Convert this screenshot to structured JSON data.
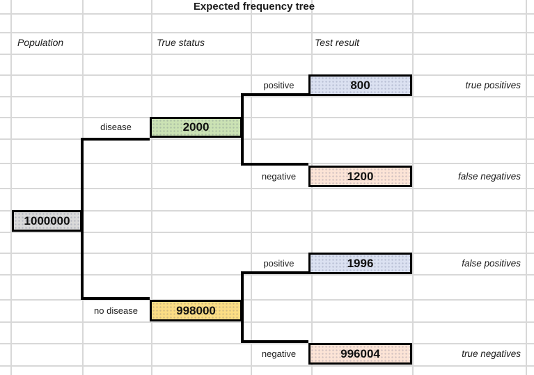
{
  "title": "Expected frequency tree",
  "column_headers": {
    "population": "Population",
    "true_status": "True status",
    "test_result": "Test result"
  },
  "tree": {
    "root": {
      "value": "1000000"
    },
    "level1": [
      {
        "label": "disease",
        "value": "2000"
      },
      {
        "label": "no disease",
        "value": "998000"
      }
    ],
    "level2": [
      {
        "label": "positive",
        "value": "800",
        "annotation": "true positives"
      },
      {
        "label": "negative",
        "value": "1200",
        "annotation": "false negatives"
      },
      {
        "label": "positive",
        "value": "1996",
        "annotation": "false positives"
      },
      {
        "label": "negative",
        "value": "996004",
        "annotation": "true negatives"
      }
    ]
  },
  "colors": {
    "root_fill": "#d9d9d9",
    "disease_fill": "#cbe2b4",
    "no_disease_fill": "#fbdd84",
    "positive_fill": "#dbe1f1",
    "negative_fill": "#fce4d6",
    "connector_line": "#000000",
    "gridline": "#d8d8d8"
  }
}
